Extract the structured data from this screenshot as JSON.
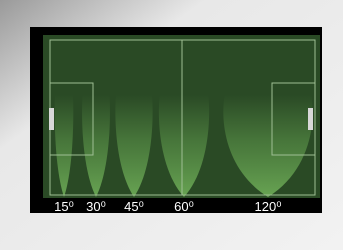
{
  "beams": [
    {
      "label": "15⁰"
    },
    {
      "label": "30⁰"
    },
    {
      "label": "45⁰"
    },
    {
      "label": "60⁰"
    },
    {
      "label": "120⁰"
    }
  ]
}
